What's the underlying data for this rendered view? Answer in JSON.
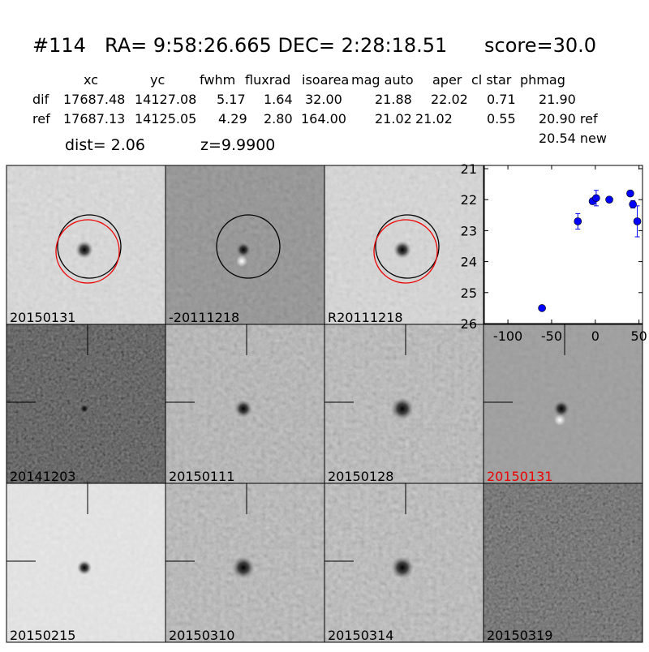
{
  "header": {
    "id": "#114",
    "coords": "RA= 9:58:26.665 DEC= 2:28:18.51",
    "score": "score=30.0"
  },
  "table": {
    "columns": [
      "xc",
      "yc",
      "fwhm",
      "fluxrad",
      "isoarea",
      "mag auto",
      "aper",
      "cl star",
      "phmag"
    ],
    "rows": [
      [
        "dif",
        "17687.48",
        "14127.08",
        "5.17",
        "1.64",
        "32.00",
        "21.88",
        "22.02",
        "0.71",
        "21.90"
      ],
      [
        "ref",
        "17687.13",
        "14125.05",
        "4.29",
        "2.80",
        "164.00",
        "21.02",
        "21.02",
        "0.55",
        "20.90 ref"
      ]
    ],
    "extra": "20.54 new"
  },
  "dist": "dist=  2.06",
  "z": "z=9.9900",
  "stamps": [
    "20150131",
    "-20111218",
    "R20111218",
    "20141203",
    "20150111",
    "20150128",
    "20150131",
    "20150215",
    "20150310",
    "20150314",
    "20150319"
  ],
  "chart_data": {
    "type": "scatter",
    "x": [
      -61,
      -20,
      -3,
      1,
      16,
      40,
      43,
      48
    ],
    "series": [
      {
        "color": "#0000ff",
        "values": [
          25.5,
          22.7,
          22.05,
          21.95,
          22.0,
          21.8,
          22.15,
          22.7
        ],
        "errors": [
          0.05,
          0.25,
          0.1,
          0.25,
          0.05,
          0.05,
          0.12,
          0.5
        ]
      }
    ],
    "xlim": [
      -127,
      54
    ],
    "ylim": [
      21,
      26
    ],
    "inverted_y": true,
    "xticks": [
      -100,
      -50,
      0,
      50
    ],
    "yticks": [
      21,
      22,
      23,
      24,
      25,
      26
    ]
  }
}
